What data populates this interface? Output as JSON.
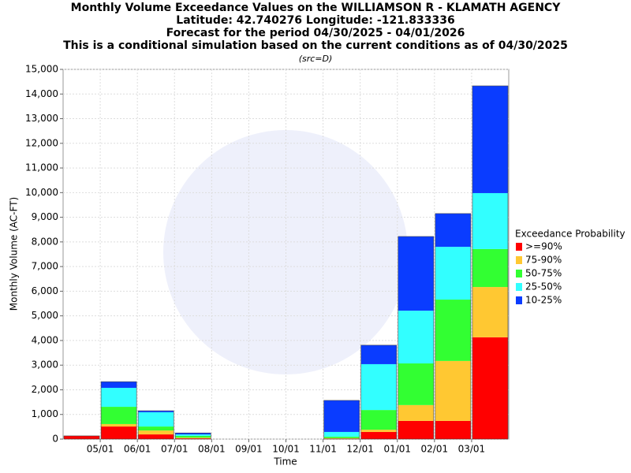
{
  "chart_data": {
    "type": "stacked-bar",
    "title": "Monthly Volume Exceedance Values on the WILLIAMSON R - KLAMATH AGENCY",
    "subtitles": [
      "Latitude: 42.740276 Longitude: -121.833336",
      "Forecast for the period 04/30/2025 - 04/01/2026",
      "This is a conditional simulation based on the current conditions as of 04/30/2025"
    ],
    "source_note": "(src=D)",
    "x_label": "Time",
    "y_label": "Monthly Volume (AC-FT)",
    "legend_title": "Exceedance Probability",
    "categories": [
      null,
      null,
      null,
      null,
      null,
      null,
      null,
      null,
      null,
      null,
      null,
      null
    ],
    "xtick_labels": [
      "05/01",
      "06/01",
      "07/01",
      "08/01",
      "09/01",
      "10/01",
      "11/01",
      "12/01",
      "01/01",
      "02/01",
      "03/01"
    ],
    "series": [
      {
        "name": ">=90%",
        "color": "#ff0000",
        "values": [
          130,
          510,
          190,
          30,
          0,
          0,
          0,
          20,
          290,
          740,
          740,
          4130
        ]
      },
      {
        "name": "75-90%",
        "color": "#ffc832",
        "values": [
          0,
          100,
          160,
          30,
          0,
          0,
          0,
          20,
          90,
          640,
          2430,
          2040
        ]
      },
      {
        "name": "50-75%",
        "color": "#32ff32",
        "values": [
          0,
          700,
          160,
          70,
          0,
          0,
          0,
          60,
          800,
          1690,
          2490,
          1540
        ]
      },
      {
        "name": "25-50%",
        "color": "#32ffff",
        "values": [
          0,
          770,
          580,
          60,
          0,
          0,
          0,
          190,
          1860,
          2140,
          2140,
          2270
        ]
      },
      {
        "name": "10-25%",
        "color": "#0a3cff",
        "values": [
          0,
          250,
          60,
          60,
          0,
          0,
          0,
          1280,
          770,
          3010,
          1350,
          4350
        ]
      }
    ],
    "ylim": [
      0,
      15000
    ],
    "yticks": [
      0,
      {
        "value": 1000,
        "label": "1,000"
      },
      {
        "value": 2000,
        "label": "2,000"
      },
      {
        "value": 3000,
        "label": "3,000"
      },
      {
        "value": 4000,
        "label": "4,000"
      },
      {
        "value": 5000,
        "label": "5,000"
      },
      {
        "value": 6000,
        "label": "6,000"
      },
      {
        "value": 7000,
        "label": "7,000"
      },
      {
        "value": 8000,
        "label": "8,000"
      },
      {
        "value": 9000,
        "label": "9,000"
      },
      {
        "value": 10000,
        "label": "10,000"
      },
      {
        "value": 11000,
        "label": "11,000"
      },
      {
        "value": 12000,
        "label": "12,000"
      },
      {
        "value": 13000,
        "label": "13,000"
      },
      {
        "value": 14000,
        "label": "14,000"
      },
      {
        "value": 15000,
        "label": "15,000"
      }
    ],
    "grid": true
  }
}
